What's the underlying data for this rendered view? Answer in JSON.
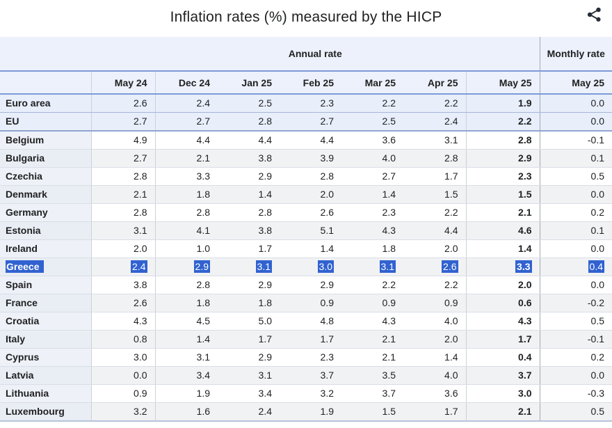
{
  "title": "Inflation rates (%) measured by the HICP",
  "share": {
    "icon": "share-icon"
  },
  "colors": {
    "header_bg": "#edf1fb",
    "header_rule_blue": "#7e9ad7",
    "aggregate_row_bg": "#e8eefa",
    "stripe_row_bg": "#f1f2f4",
    "label_col_bg": "#eef1f8",
    "monthly_divider": "#a2a9b1",
    "selection_highlight": "#3162d0",
    "selection_text": "#ffffff",
    "text": "#202122"
  },
  "chart_data": {
    "type": "table",
    "title": "Inflation rates (%) measured by the HICP",
    "column_groups": [
      {
        "label": "Annual rate",
        "span": 7
      },
      {
        "label": "Monthly rate",
        "span": 1
      }
    ],
    "columns": [
      "May 24",
      "Dec 24",
      "Jan 25",
      "Feb 25",
      "Mar 25",
      "Apr 25",
      "May 25",
      "May 25"
    ],
    "rows": [
      {
        "name": "Euro area",
        "variant": "aggregate",
        "separator": false,
        "highlight": false,
        "values": [
          "2.6",
          "2.4",
          "2.5",
          "2.3",
          "2.2",
          "2.2",
          "1.9",
          "0.0"
        ]
      },
      {
        "name": "EU",
        "variant": "aggregate",
        "separator": true,
        "highlight": false,
        "values": [
          "2.7",
          "2.7",
          "2.8",
          "2.7",
          "2.5",
          "2.4",
          "2.2",
          "0.0"
        ]
      },
      {
        "name": "Belgium",
        "variant": "white",
        "separator": false,
        "highlight": false,
        "values": [
          "4.9",
          "4.4",
          "4.4",
          "4.4",
          "3.6",
          "3.1",
          "2.8",
          "-0.1"
        ]
      },
      {
        "name": "Bulgaria",
        "variant": "stripe",
        "separator": false,
        "highlight": false,
        "values": [
          "2.7",
          "2.1",
          "3.8",
          "3.9",
          "4.0",
          "2.8",
          "2.9",
          "0.1"
        ]
      },
      {
        "name": "Czechia",
        "variant": "white",
        "separator": false,
        "highlight": false,
        "values": [
          "2.8",
          "3.3",
          "2.9",
          "2.8",
          "2.7",
          "1.7",
          "2.3",
          "0.5"
        ]
      },
      {
        "name": "Denmark",
        "variant": "stripe",
        "separator": false,
        "highlight": false,
        "values": [
          "2.1",
          "1.8",
          "1.4",
          "2.0",
          "1.4",
          "1.5",
          "1.5",
          "0.0"
        ]
      },
      {
        "name": "Germany",
        "variant": "white",
        "separator": false,
        "highlight": false,
        "values": [
          "2.8",
          "2.8",
          "2.8",
          "2.6",
          "2.3",
          "2.2",
          "2.1",
          "0.2"
        ]
      },
      {
        "name": "Estonia",
        "variant": "stripe",
        "separator": false,
        "highlight": false,
        "values": [
          "3.1",
          "4.1",
          "3.8",
          "5.1",
          "4.3",
          "4.4",
          "4.6",
          "0.1"
        ]
      },
      {
        "name": "Ireland",
        "variant": "white",
        "separator": false,
        "highlight": false,
        "values": [
          "2.0",
          "1.0",
          "1.7",
          "1.4",
          "1.8",
          "2.0",
          "1.4",
          "0.0"
        ]
      },
      {
        "name": "Greece",
        "variant": "stripe",
        "separator": false,
        "highlight": true,
        "values": [
          "2.4",
          "2.9",
          "3.1",
          "3.0",
          "3.1",
          "2.6",
          "3.3",
          "0.4"
        ]
      },
      {
        "name": "Spain",
        "variant": "white",
        "separator": false,
        "highlight": false,
        "values": [
          "3.8",
          "2.8",
          "2.9",
          "2.9",
          "2.2",
          "2.2",
          "2.0",
          "0.0"
        ]
      },
      {
        "name": "France",
        "variant": "stripe",
        "separator": false,
        "highlight": false,
        "values": [
          "2.6",
          "1.8",
          "1.8",
          "0.9",
          "0.9",
          "0.9",
          "0.6",
          "-0.2"
        ]
      },
      {
        "name": "Croatia",
        "variant": "white",
        "separator": false,
        "highlight": false,
        "values": [
          "4.3",
          "4.5",
          "5.0",
          "4.8",
          "4.3",
          "4.0",
          "4.3",
          "0.5"
        ]
      },
      {
        "name": "Italy",
        "variant": "stripe",
        "separator": false,
        "highlight": false,
        "values": [
          "0.8",
          "1.4",
          "1.7",
          "1.7",
          "2.1",
          "2.0",
          "1.7",
          "-0.1"
        ]
      },
      {
        "name": "Cyprus",
        "variant": "white",
        "separator": false,
        "highlight": false,
        "values": [
          "3.0",
          "3.1",
          "2.9",
          "2.3",
          "2.1",
          "1.4",
          "0.4",
          "0.2"
        ]
      },
      {
        "name": "Latvia",
        "variant": "stripe",
        "separator": false,
        "highlight": false,
        "values": [
          "0.0",
          "3.4",
          "3.1",
          "3.7",
          "3.5",
          "4.0",
          "3.7",
          "0.0"
        ]
      },
      {
        "name": "Lithuania",
        "variant": "white",
        "separator": false,
        "highlight": false,
        "values": [
          "0.9",
          "1.9",
          "3.4",
          "3.2",
          "3.7",
          "3.6",
          "3.0",
          "-0.3"
        ]
      },
      {
        "name": "Luxembourg",
        "variant": "stripe",
        "separator": false,
        "highlight": false,
        "values": [
          "3.2",
          "1.6",
          "2.4",
          "1.9",
          "1.5",
          "1.7",
          "2.1",
          "0.5"
        ]
      }
    ]
  }
}
